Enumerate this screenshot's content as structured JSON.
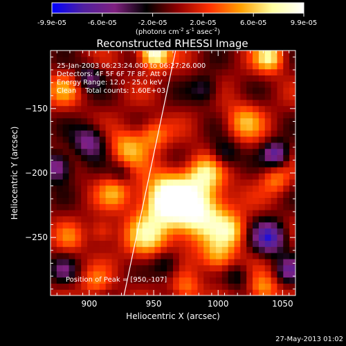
{
  "chart_data": {
    "type": "heatmap",
    "title": "Reconstructed RHESSI Image",
    "colorbar": {
      "ticks": [
        "-9.9e-05",
        "-6.0e-05",
        "-2.0e-05",
        "2.0e-05",
        "6.0e-05",
        "9.9e-05"
      ],
      "unit_prefix": "(photons cm",
      "unit_exp1": "-2",
      "unit_mid": " s",
      "unit_exp2": "-1",
      "unit_mid2": " asec",
      "unit_exp3": "-2",
      "unit_suffix": ")",
      "colors": [
        "#0000ff",
        "#5020a0",
        "#802080",
        "#000000",
        "#900000",
        "#ff3000",
        "#ffa000",
        "#ffffa0",
        "#ffffff"
      ]
    },
    "xlabel": "Heliocentric X (arcsec)",
    "ylabel": "Heliocentric Y (arcsec)",
    "x_ticks": [
      "900",
      "950",
      "1000",
      "1050"
    ],
    "y_ticks": [
      "-150",
      "-200",
      "-250"
    ],
    "xlim": [
      870,
      1060
    ],
    "ylim": [
      -295,
      -105
    ],
    "info_lines": [
      "25-Jan-2003 06:23:24.000 to 06:27:26.000",
      "Detectors: 4F 5F 6F 7F 8F, Att 0",
      "Energy Range: 12.0 - 25.0 keV",
      "Clean    Total counts: 1.60E+03"
    ],
    "peak_label": "Position of Peak = [950,-107]",
    "peak": [
      950,
      -107
    ],
    "limb_line": [
      [
        927,
        -295
      ],
      [
        967,
        -105
      ]
    ],
    "blobs": [
      {
        "x": 960,
        "y": -220,
        "v": 1.0,
        "s": 14
      },
      {
        "x": 985,
        "y": -230,
        "v": 0.9,
        "s": 16
      },
      {
        "x": 945,
        "y": -250,
        "v": 0.6,
        "s": 12
      },
      {
        "x": 990,
        "y": -200,
        "v": 0.6,
        "s": 10
      },
      {
        "x": 930,
        "y": -180,
        "v": 0.55,
        "s": 10
      },
      {
        "x": 950,
        "y": -170,
        "v": 0.45,
        "s": 8
      },
      {
        "x": 920,
        "y": -215,
        "v": 0.45,
        "s": 9
      },
      {
        "x": 1010,
        "y": -245,
        "v": 0.5,
        "s": 9
      },
      {
        "x": 1000,
        "y": -265,
        "v": 0.55,
        "s": 9
      },
      {
        "x": 950,
        "y": -107,
        "v": 1.0,
        "s": 8
      },
      {
        "x": 1040,
        "y": -110,
        "v": 0.7,
        "s": 8
      },
      {
        "x": 1020,
        "y": -160,
        "v": 0.5,
        "s": 10
      },
      {
        "x": 1045,
        "y": -205,
        "v": 0.4,
        "s": 8
      },
      {
        "x": 1035,
        "y": -290,
        "v": 0.5,
        "s": 8
      },
      {
        "x": 880,
        "y": -135,
        "v": 0.4,
        "s": 9
      },
      {
        "x": 885,
        "y": -250,
        "v": 0.3,
        "s": 8
      },
      {
        "x": 905,
        "y": -285,
        "v": 0.35,
        "s": 8
      },
      {
        "x": 975,
        "y": -290,
        "v": 0.4,
        "s": 8
      },
      {
        "x": 910,
        "y": -245,
        "v": 0.35,
        "s": 7
      },
      {
        "x": 900,
        "y": -175,
        "v": -0.6,
        "s": 9
      },
      {
        "x": 875,
        "y": -195,
        "v": -0.7,
        "s": 8
      },
      {
        "x": 1005,
        "y": -185,
        "v": -0.45,
        "s": 8
      },
      {
        "x": 1045,
        "y": -185,
        "v": -0.7,
        "s": 7
      },
      {
        "x": 1040,
        "y": -250,
        "v": -0.8,
        "s": 9
      },
      {
        "x": 1055,
        "y": -275,
        "v": -0.5,
        "s": 7
      },
      {
        "x": 960,
        "y": -270,
        "v": -0.4,
        "s": 8
      },
      {
        "x": 925,
        "y": -200,
        "v": -0.3,
        "s": 6
      },
      {
        "x": 900,
        "y": -125,
        "v": -0.45,
        "s": 7
      },
      {
        "x": 990,
        "y": -135,
        "v": -0.4,
        "s": 8
      },
      {
        "x": 1015,
        "y": -280,
        "v": -0.3,
        "s": 7
      },
      {
        "x": 880,
        "y": -275,
        "v": -0.35,
        "s": 7
      }
    ]
  },
  "footer": {
    "timestamp": "27-May-2013 01:02"
  }
}
